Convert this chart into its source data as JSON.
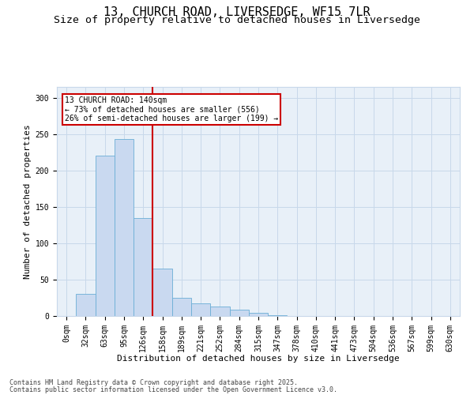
{
  "title_line1": "13, CHURCH ROAD, LIVERSEDGE, WF15 7LR",
  "title_line2": "Size of property relative to detached houses in Liversedge",
  "xlabel": "Distribution of detached houses by size in Liversedge",
  "ylabel": "Number of detached properties",
  "bar_labels": [
    "0sqm",
    "32sqm",
    "63sqm",
    "95sqm",
    "126sqm",
    "158sqm",
    "189sqm",
    "221sqm",
    "252sqm",
    "284sqm",
    "315sqm",
    "347sqm",
    "378sqm",
    "410sqm",
    "441sqm",
    "473sqm",
    "504sqm",
    "536sqm",
    "567sqm",
    "599sqm",
    "630sqm"
  ],
  "bar_values": [
    0,
    30,
    220,
    243,
    135,
    65,
    25,
    17,
    13,
    9,
    4,
    1,
    0,
    0,
    0,
    0,
    0,
    0,
    0,
    0,
    0
  ],
  "bar_color": "#c9d9f0",
  "bar_edge_color": "#6baed6",
  "grid_color": "#c8d8ea",
  "background_color": "#e8f0f8",
  "vline_x_index": 4.5,
  "annotation_title": "13 CHURCH ROAD: 140sqm",
  "annotation_line2": "← 73% of detached houses are smaller (556)",
  "annotation_line3": "26% of semi-detached houses are larger (199) →",
  "annotation_box_color": "#cc0000",
  "vline_color": "#cc0000",
  "ylim": [
    0,
    315
  ],
  "yticks": [
    0,
    50,
    100,
    150,
    200,
    250,
    300
  ],
  "footer_line1": "Contains HM Land Registry data © Crown copyright and database right 2025.",
  "footer_line2": "Contains public sector information licensed under the Open Government Licence v3.0.",
  "title_fontsize": 11,
  "subtitle_fontsize": 9.5,
  "axis_label_fontsize": 8,
  "tick_fontsize": 7,
  "annotation_fontsize": 7,
  "footer_fontsize": 6
}
